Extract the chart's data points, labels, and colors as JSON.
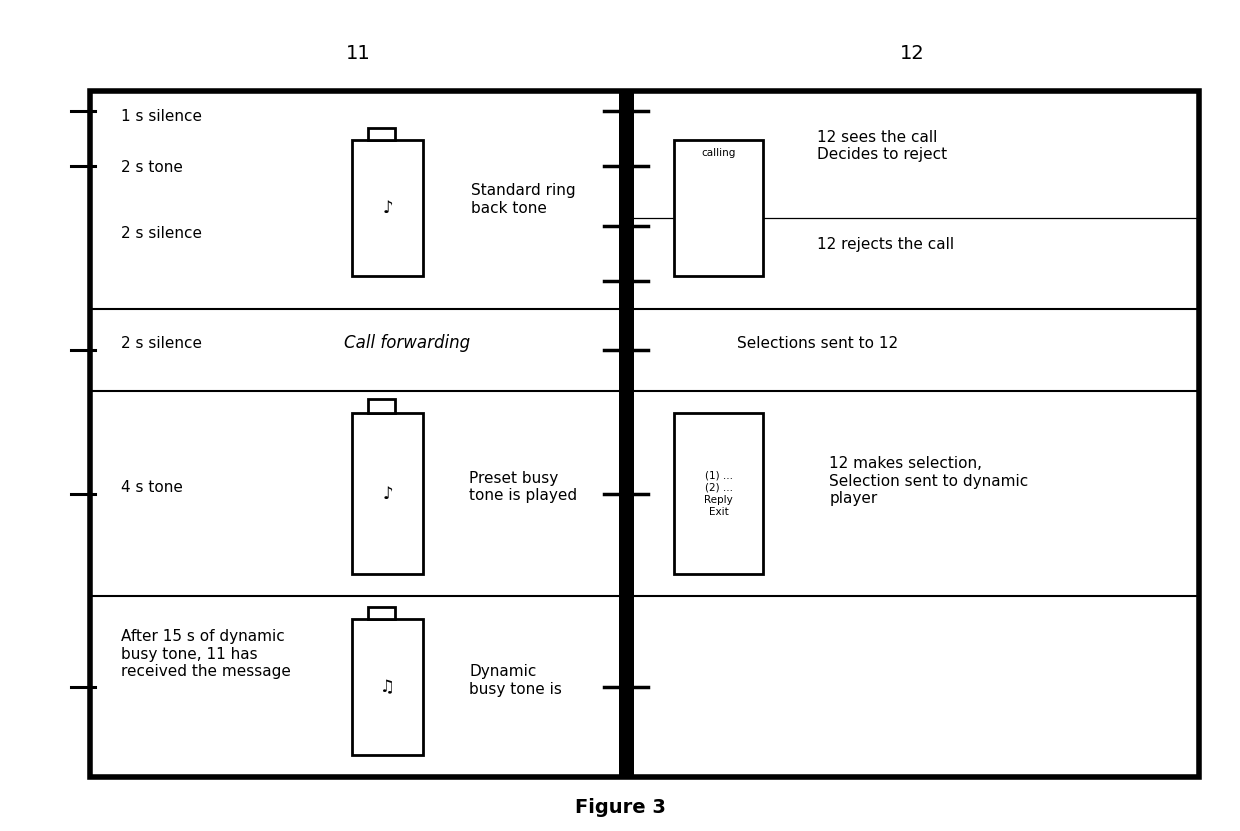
{
  "title": "Figure 3",
  "header_11": "11",
  "header_12": "12",
  "bg_color": "#ffffff",
  "line_color": "#000000",
  "fig_width": 12.4,
  "fig_height": 8.31,
  "note_single": "♪",
  "note_double": "♫",
  "comma_low": ","
}
